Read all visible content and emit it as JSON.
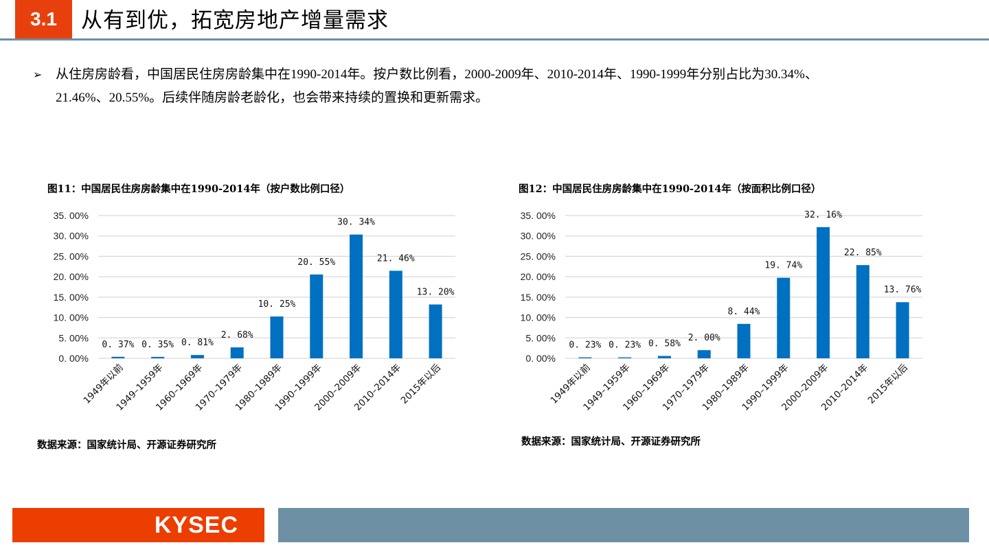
{
  "header": {
    "section_number": "3.1",
    "title": "从有到优，拓宽房地产增量需求"
  },
  "bullet": {
    "marker": "➢",
    "line1": "从住房房龄看，中国居民住房房龄集中在1990-2014年。按户数比例看，2000-2009年、2010-2014年、1990-1999年分别占比为30.34%、",
    "line2": "21.46%、20.55%。后续伴随房龄老龄化，也会带来持续的置换和更新需求。"
  },
  "charts": [
    {
      "title": "图11：中国居民住房房龄集中在1990-2014年（按户数比例口径）",
      "source": "数据来源：国家统计局、开源证券研究所"
    },
    {
      "title": "图12：中国居民住房房龄集中在1990-2014年（按面积比例口径）",
      "source": "数据来源：国家统计局、开源证券研究所"
    }
  ],
  "chart_data": [
    {
      "type": "bar",
      "title": "图11：中国居民住房房龄集中在1990-2014年（按户数比例口径）",
      "categories": [
        "1949年以前",
        "1949-1959年",
        "1960-1969年",
        "1970-1979年",
        "1980-1989年",
        "1990-1999年",
        "2000-2009年",
        "2010-2014年",
        "2015年以后"
      ],
      "values": [
        0.37,
        0.35,
        0.81,
        2.68,
        10.25,
        20.55,
        30.34,
        21.46,
        13.2
      ],
      "data_labels": [
        "0.37%",
        "0.35%",
        "0.81%",
        "2.68%",
        "10.25%",
        "20.55%",
        "30.34%",
        "21.46%",
        "13.20%"
      ],
      "yticks": [
        "0.00%",
        "5.00%",
        "10.00%",
        "15.00%",
        "20.00%",
        "25.00%",
        "30.00%",
        "35.00%"
      ],
      "xlabel": "",
      "ylabel": "",
      "ylim": [
        0,
        35
      ],
      "grid": true,
      "legend": "none",
      "bar_color": "#0070c0"
    },
    {
      "type": "bar",
      "title": "图12：中国居民住房房龄集中在1990-2014年（按面积比例口径）",
      "categories": [
        "1949年以前",
        "1949-1959年",
        "1960-1969年",
        "1970-1979年",
        "1980-1989年",
        "1990-1999年",
        "2000-2009年",
        "2010-2014年",
        "2015年以后"
      ],
      "values": [
        0.23,
        0.23,
        0.58,
        2.0,
        8.44,
        19.74,
        32.16,
        22.85,
        13.76
      ],
      "data_labels": [
        "0.23%",
        "0.23%",
        "0.58%",
        "2.00%",
        "8.44%",
        "19.74%",
        "32.16%",
        "22.85%",
        "13.76%"
      ],
      "yticks": [
        "0.00%",
        "5.00%",
        "10.00%",
        "15.00%",
        "20.00%",
        "25.00%",
        "30.00%",
        "35.00%"
      ],
      "xlabel": "",
      "ylabel": "",
      "ylim": [
        0,
        35
      ],
      "grid": true,
      "legend": "none",
      "bar_color": "#0070c0"
    }
  ],
  "footer": {
    "logo": "KYSEC",
    "colors": {
      "brand_orange": "#eb3e00",
      "brand_slate": "#6d90a4"
    }
  }
}
